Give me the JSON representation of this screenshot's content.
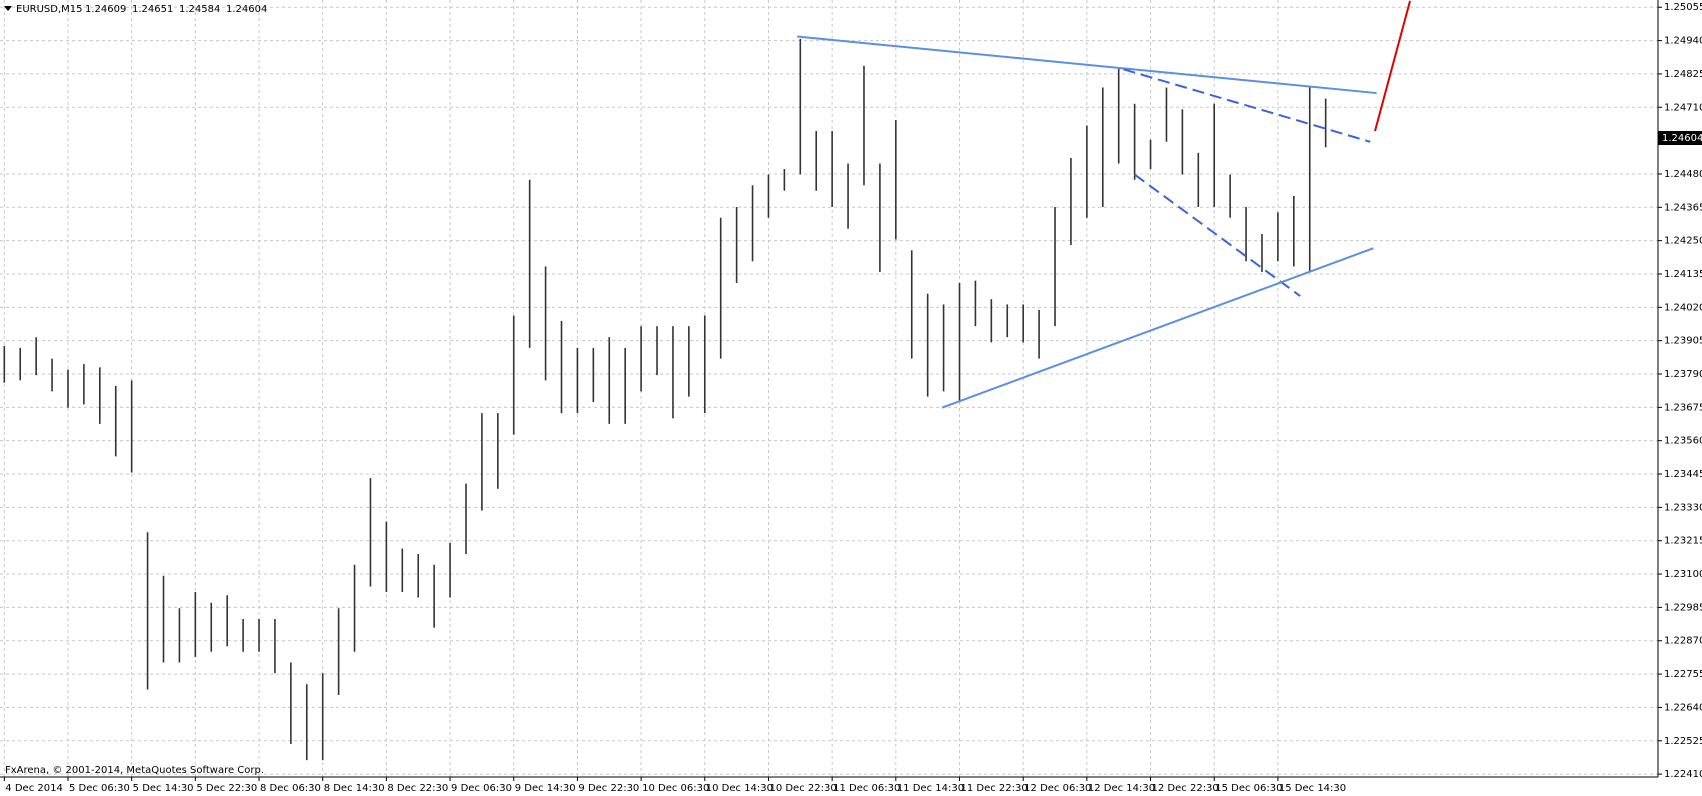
{
  "chart_data": {
    "type": "hlbar",
    "symbol": "EURUSD,M15",
    "ohlc": [
      1.24609,
      1.24651,
      1.24584,
      1.24604
    ],
    "footer": "FxArena, © 2001-2014, MetaQuotes Software Corp.",
    "categories": [
      "4 Dec 2014",
      null,
      null,
      null,
      "5 Dec 06:30",
      null,
      null,
      null,
      "5 Dec 14:30",
      null,
      null,
      null,
      "5 Dec 22:30",
      null,
      null,
      null,
      "8 Dec 06:30",
      null,
      null,
      null,
      "8 Dec 14:30",
      null,
      null,
      null,
      "8 Dec 22:30",
      null,
      null,
      null,
      "9 Dec 06:30",
      null,
      null,
      null,
      "9 Dec 14:30",
      null,
      null,
      null,
      "9 Dec 22:30",
      null,
      null,
      null,
      "10 Dec 06:30",
      null,
      null,
      null,
      "10 Dec 14:30",
      null,
      null,
      null,
      "10 Dec 22:30",
      null,
      null,
      null,
      "11 Dec 06:30",
      null,
      null,
      null,
      "11 Dec 14:30",
      null,
      null,
      null,
      "11 Dec 22:30",
      null,
      null,
      null,
      "12 Dec 06:30",
      null,
      null,
      null,
      "12 Dec 14:30",
      null,
      null,
      null,
      "12 Dec 22:30",
      null,
      null,
      null,
      "15 Dec 06:30",
      null,
      null,
      null,
      "15 Dec 14:30",
      null,
      null,
      null
    ],
    "high": [
      1.23887,
      1.2388,
      1.23917,
      1.23843,
      1.23805,
      1.23824,
      1.23813,
      1.23749,
      1.23768,
      1.23244,
      1.23094,
      1.22982,
      1.23038,
      1.23001,
      1.23027,
      1.22945,
      1.22945,
      1.22945,
      1.22795,
      1.2272,
      1.22758,
      1.22982,
      1.23132,
      1.23431,
      1.23281,
      1.23188,
      1.23169,
      1.23132,
      1.23207,
      1.23412,
      1.23655,
      1.23655,
      1.23992,
      1.2446,
      1.24161,
      1.23973,
      1.2388,
      1.2388,
      1.23917,
      1.2388,
      1.23955,
      1.23955,
      1.23955,
      1.23955,
      1.23992,
      1.24329,
      1.24366,
      1.24441,
      1.24478,
      1.24497,
      1.24946,
      1.24628,
      1.24628,
      1.24516,
      1.24853,
      1.24516,
      1.24666,
      1.24217,
      1.24067,
      1.2403,
      1.24104,
      1.24112,
      1.24048,
      1.2403,
      1.2403,
      1.24011,
      1.24366,
      1.24535,
      1.24647,
      1.24778,
      1.24845,
      1.24722,
      1.24598,
      1.24778,
      1.24703,
      1.24553,
      1.24722,
      1.24478,
      1.24366,
      1.24273,
      1.24348,
      1.24404,
      1.24778,
      1.2474
    ],
    "low": [
      1.2376,
      1.23768,
      1.23786,
      1.2373,
      1.23674,
      1.23685,
      1.23618,
      1.23506,
      1.2345,
      1.22702,
      1.22795,
      1.22795,
      1.22814,
      1.22832,
      1.22851,
      1.22832,
      1.22832,
      1.22758,
      1.22514,
      1.22458,
      1.22458,
      1.22683,
      1.22832,
      1.23057,
      1.23038,
      1.23038,
      1.23019,
      1.22915,
      1.23019,
      1.23169,
      1.23319,
      1.23394,
      1.23581,
      1.2388,
      1.23768,
      1.23655,
      1.23655,
      1.23693,
      1.23618,
      1.23618,
      1.2373,
      1.23786,
      1.23637,
      1.23712,
      1.23655,
      1.23843,
      1.24104,
      1.24179,
      1.24329,
      1.24422,
      1.24478,
      1.24422,
      1.24366,
      1.24291,
      1.24441,
      1.24142,
      1.24254,
      1.23843,
      1.23712,
      1.2373,
      1.23693,
      1.23955,
      1.23899,
      1.23917,
      1.23899,
      1.23843,
      1.23955,
      1.24235,
      1.24329,
      1.24366,
      1.24516,
      1.2446,
      1.24497,
      1.24591,
      1.24478,
      1.24366,
      1.24366,
      1.24329,
      1.24179,
      1.24142,
      1.24179,
      1.24161,
      1.24142,
      1.24572
    ],
    "color": "#333333",
    "ylim": [
      1.224,
      1.2508
    ],
    "yticks": [
      1.25055,
      {
        "value": 1.2494,
        "label": "1.24940"
      },
      1.24825,
      {
        "value": 1.2471,
        "label": "1.24710"
      },
      {
        "value": 1.2448,
        "label": "1.24480"
      },
      1.24365,
      {
        "value": 1.2425,
        "label": "1.24250"
      },
      1.24135,
      {
        "value": 1.2402,
        "label": "1.24020"
      },
      1.23905,
      {
        "value": 1.2379,
        "label": "1.23790"
      },
      1.23675,
      {
        "value": 1.2356,
        "label": "1.23560"
      },
      1.23445,
      {
        "value": 1.2333,
        "label": "1.23330"
      },
      1.23215,
      {
        "value": 1.231,
        "label": "1.23100"
      },
      1.22985,
      {
        "value": 1.2287,
        "label": "1.22870"
      },
      1.22755,
      {
        "value": 1.2264,
        "label": "1.22640"
      },
      1.22525,
      {
        "value": 1.2241,
        "label": "1.22410"
      }
    ],
    "grid": true,
    "trendlines": [
      {
        "color": "#5b8fe0",
        "dashed": false,
        "bars": [
          49.8,
          86.2
        ],
        "prices": [
          1.24954,
          1.24759
        ]
      },
      {
        "color": "#3d63d6",
        "dashed": true,
        "bars": [
          70.3,
          85.8
        ],
        "prices": [
          1.24841,
          1.24591
        ]
      },
      {
        "color": "#3d63d6",
        "dashed": true,
        "bars": [
          71,
          81.4
        ],
        "prices": [
          1.24478,
          1.24059
        ]
      },
      {
        "color": "#5b8fe0",
        "dashed": false,
        "bars": [
          58.9,
          86
        ],
        "prices": [
          1.23674,
          1.24224
        ]
      },
      {
        "color": "#e00000",
        "dashed": false,
        "bars": [
          86.1,
          88.3
        ],
        "prices": [
          1.24628,
          1.25077
        ]
      }
    ]
  }
}
